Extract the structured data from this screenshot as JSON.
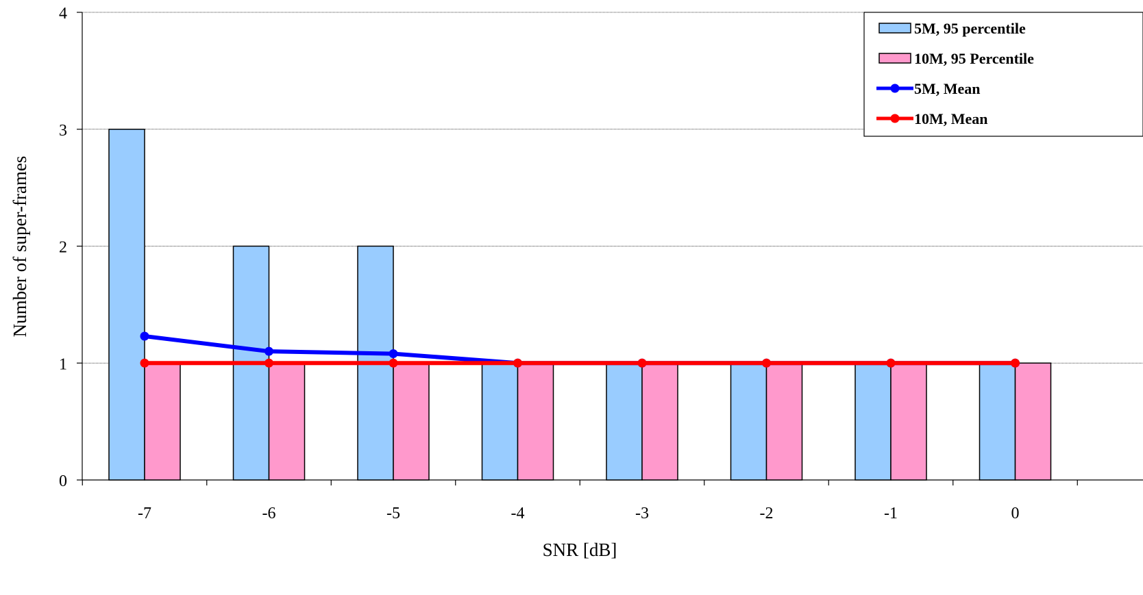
{
  "chart_data": {
    "type": "bar",
    "categories": [
      "-7",
      "-6",
      "-5",
      "-4",
      "-3",
      "-2",
      "-1",
      "0"
    ],
    "xlabel": "SNR [dB]",
    "ylabel": "Number of super-frames",
    "ylim": [
      0,
      4
    ],
    "yticks": [
      "0",
      "1",
      "2",
      "3",
      "4"
    ],
    "grid": "horizontal dotted",
    "legend_position": "top-right",
    "series": [
      {
        "name": "5M, 95 percentile",
        "kind": "bar",
        "color": "#99ccff",
        "values": [
          3,
          2,
          2,
          1,
          1,
          1,
          1,
          1
        ]
      },
      {
        "name": "10M, 95 Percentile",
        "kind": "bar",
        "color": "#ff99cc",
        "values": [
          1,
          1,
          1,
          1,
          1,
          1,
          1,
          1
        ]
      },
      {
        "name": "5M, Mean",
        "kind": "line",
        "color": "#0000ff",
        "values": [
          1.23,
          1.1,
          1.08,
          1.0,
          1.0,
          1.0,
          1.0,
          1.0
        ]
      },
      {
        "name": "10M, Mean",
        "kind": "line",
        "color": "#ff0000",
        "values": [
          1,
          1,
          1,
          1,
          1,
          1,
          1,
          1
        ]
      }
    ]
  }
}
